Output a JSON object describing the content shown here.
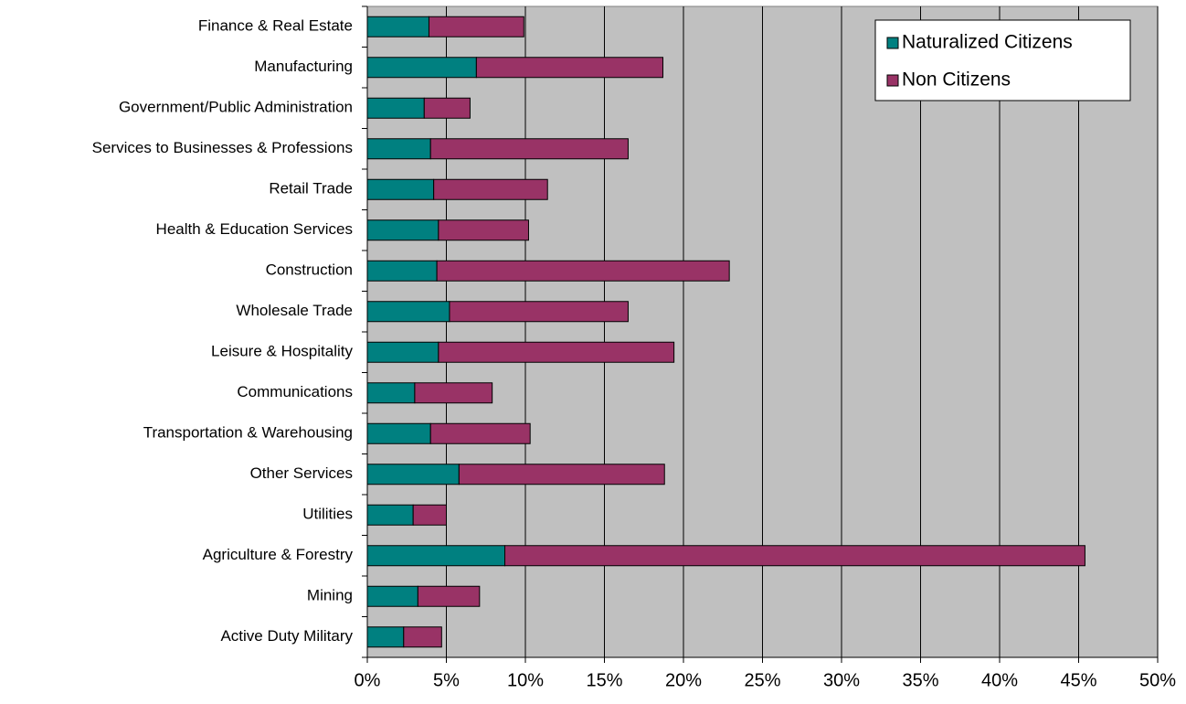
{
  "chart_data": {
    "type": "stacked_barh",
    "categories": [
      "Finance & Real Estate",
      "Manufacturing",
      "Government/Public Administration",
      "Services to Businesses & Professions",
      "Retail Trade",
      "Health & Education Services",
      "Construction",
      "Wholesale Trade",
      "Leisure & Hospitality",
      "Communications",
      "Transportation & Warehousing",
      "Other Services",
      "Utilities",
      "Agriculture & Forestry",
      "Mining",
      "Active Duty Military"
    ],
    "series": [
      {
        "name": "Naturalized Citizens",
        "color": "#008080",
        "values": [
          3.9,
          6.9,
          3.6,
          4.0,
          4.2,
          4.5,
          4.4,
          5.2,
          4.5,
          3.0,
          4.0,
          5.8,
          2.9,
          8.7,
          3.2,
          2.3
        ]
      },
      {
        "name": "Non Citizens",
        "color": "#993366",
        "values": [
          6.0,
          11.8,
          2.9,
          12.5,
          7.2,
          5.7,
          18.5,
          11.3,
          14.9,
          4.9,
          6.3,
          13.0,
          2.1,
          36.7,
          3.9,
          2.4
        ]
      }
    ],
    "xlim": [
      0,
      50
    ],
    "xticks": [
      {
        "value": 0,
        "label": "0%"
      },
      {
        "value": 5,
        "label": "5%"
      },
      {
        "value": 10,
        "label": "10%"
      },
      {
        "value": 15,
        "label": "15%"
      },
      {
        "value": 20,
        "label": "20%"
      },
      {
        "value": 25,
        "label": "25%"
      },
      {
        "value": 30,
        "label": "30%"
      },
      {
        "value": 35,
        "label": "35%"
      },
      {
        "value": 40,
        "label": "40%"
      },
      {
        "value": 45,
        "label": "45%"
      },
      {
        "value": 50,
        "label": "50%"
      }
    ],
    "grid": true,
    "legend": "top-right",
    "plot_background": "#c0c0c0"
  }
}
